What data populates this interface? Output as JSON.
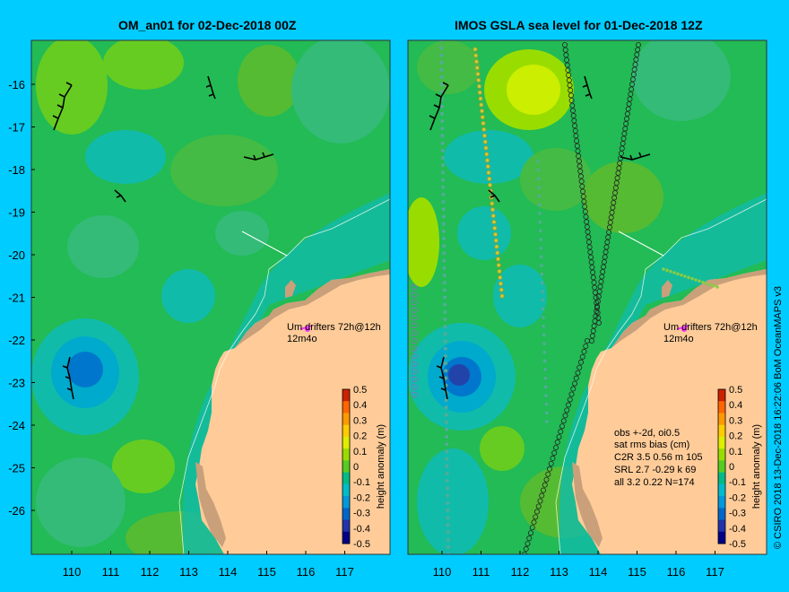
{
  "left_panel": {
    "title": "OM_an01 for 02-Dec-2018 00Z",
    "drifter_label_line1": "Um  drifters 72h@12h",
    "drifter_label_line2": "12m4o"
  },
  "right_panel": {
    "title": "IMOS GSLA sea level  for 01-Dec-2018 12Z",
    "drifter_label_line1": "Um  drifters 72h@12h",
    "drifter_label_line2": "12m4o",
    "stats": {
      "line1": "obs +-2d, oi0.5",
      "line2": "sat rms bias (cm)",
      "rows": [
        "C2R   3.5 0.56 m 105",
        "SRL   2.7 -0.29 k 69",
        "all   3.2 0.22 N=174"
      ]
    }
  },
  "colorbar": {
    "label": "height anomaly (m)",
    "ticks": [
      "0.5",
      "0.4",
      "0.3",
      "0.2",
      "0.1",
      "0",
      "-0.1",
      "-0.2",
      "-0.3",
      "-0.4",
      "-0.5"
    ],
    "colors": [
      "#cc2200",
      "#ff6600",
      "#ff9900",
      "#ffcc00",
      "#ddee00",
      "#99dd00",
      "#55cc22",
      "#00bb88",
      "#00bbcc",
      "#0099dd",
      "#0066cc",
      "#2233aa",
      "#000088"
    ]
  },
  "axes": {
    "lat_ticks": [
      "-16",
      "-17",
      "-18",
      "-19",
      "-20",
      "-21",
      "-22",
      "-23",
      "-24",
      "-25",
      "-26"
    ],
    "lon_ticks": [
      "110",
      "111",
      "112",
      "113",
      "114",
      "115",
      "116",
      "117"
    ]
  },
  "credit": "© CSIRO 2018  13-Dec-2018 16:22:06 BoM OceanMAPS v3",
  "colors": {
    "background": "#00ccff",
    "land": "#ffcc99",
    "reef": "#c9a07a",
    "ocean_base": "#22bb55"
  }
}
